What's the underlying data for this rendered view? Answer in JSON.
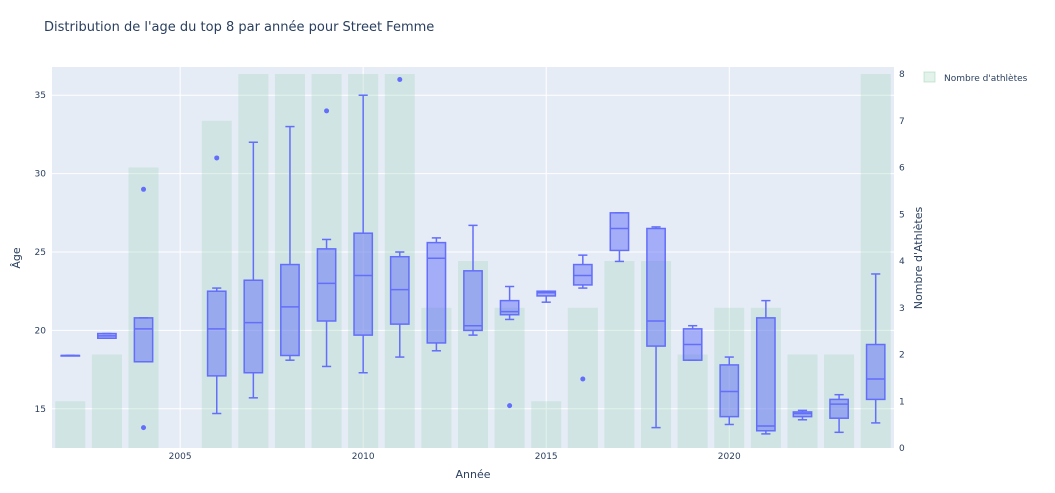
{
  "chart_data": {
    "type": "box",
    "title": "Distribution de l'age du top 8 par année pour Street Femme",
    "xlabel": "Année",
    "ylabel": "Âge",
    "y2label": "Nombre d'Athlètes",
    "xlim": [
      2001.5,
      2024.5
    ],
    "ylim": [
      12.5,
      36.8
    ],
    "y2lim": [
      0,
      8.15
    ],
    "xticks": [
      2005,
      2010,
      2015,
      2020
    ],
    "yticks": [
      15,
      20,
      25,
      30,
      35
    ],
    "y2ticks": [
      0,
      1,
      2,
      3,
      4,
      5,
      6,
      7,
      8
    ],
    "grid": true,
    "legend_position": "top-right",
    "legend": [
      "Nombre d'athlètes"
    ],
    "colors": {
      "plot_bg": "#E5ECF6",
      "box_line": "#636EFA",
      "box_fill": "rgba(99,110,250,0.5)",
      "bar_fill": "rgba(144,204,170,0.25)",
      "text": "#2a3f5f"
    },
    "bars": [
      {
        "x": 2002,
        "value": 1
      },
      {
        "x": 2003,
        "value": 2
      },
      {
        "x": 2004,
        "value": 6
      },
      {
        "x": 2006,
        "value": 7
      },
      {
        "x": 2007,
        "value": 8
      },
      {
        "x": 2008,
        "value": 8
      },
      {
        "x": 2009,
        "value": 8
      },
      {
        "x": 2010,
        "value": 8
      },
      {
        "x": 2011,
        "value": 8
      },
      {
        "x": 2012,
        "value": 3
      },
      {
        "x": 2013,
        "value": 4
      },
      {
        "x": 2014,
        "value": 3
      },
      {
        "x": 2015,
        "value": 1
      },
      {
        "x": 2016,
        "value": 3
      },
      {
        "x": 2017,
        "value": 4
      },
      {
        "x": 2018,
        "value": 4
      },
      {
        "x": 2019,
        "value": 2
      },
      {
        "x": 2020,
        "value": 3
      },
      {
        "x": 2021,
        "value": 3
      },
      {
        "x": 2022,
        "value": 2
      },
      {
        "x": 2023,
        "value": 2
      },
      {
        "x": 2024,
        "value": 8
      }
    ],
    "boxes": [
      {
        "x": 2002,
        "min": 18.4,
        "q1": 18.4,
        "median": 18.4,
        "q3": 18.4,
        "max": 18.4,
        "outliers": []
      },
      {
        "x": 2003,
        "min": 19.5,
        "q1": 19.5,
        "median": 19.65,
        "q3": 19.8,
        "max": 19.8,
        "outliers": []
      },
      {
        "x": 2004,
        "min": 18.0,
        "q1": 18.0,
        "median": 20.1,
        "q3": 20.8,
        "max": 20.8,
        "outliers": [
          29.0,
          13.8
        ]
      },
      {
        "x": 2006,
        "min": 14.7,
        "q1": 17.1,
        "median": 20.1,
        "q3": 22.5,
        "max": 22.7,
        "outliers": [
          31.0
        ]
      },
      {
        "x": 2007,
        "min": 15.7,
        "q1": 17.3,
        "median": 20.5,
        "q3": 23.2,
        "max": 32.0,
        "outliers": []
      },
      {
        "x": 2008,
        "min": 18.1,
        "q1": 18.4,
        "median": 21.5,
        "q3": 24.2,
        "max": 33.0,
        "outliers": []
      },
      {
        "x": 2009,
        "min": 17.7,
        "q1": 20.6,
        "median": 23.0,
        "q3": 25.2,
        "max": 25.8,
        "outliers": [
          34.0
        ]
      },
      {
        "x": 2010,
        "min": 17.3,
        "q1": 19.7,
        "median": 23.5,
        "q3": 26.2,
        "max": 35.0,
        "outliers": []
      },
      {
        "x": 2011,
        "min": 18.3,
        "q1": 20.4,
        "median": 22.6,
        "q3": 24.7,
        "max": 25.0,
        "outliers": [
          36.0
        ]
      },
      {
        "x": 2012,
        "min": 18.7,
        "q1": 19.2,
        "median": 24.6,
        "q3": 25.6,
        "max": 25.9,
        "outliers": []
      },
      {
        "x": 2013,
        "min": 19.7,
        "q1": 20.0,
        "median": 20.3,
        "q3": 23.8,
        "max": 26.7,
        "outliers": []
      },
      {
        "x": 2014,
        "min": 20.7,
        "q1": 21.0,
        "median": 21.2,
        "q3": 21.9,
        "max": 22.8,
        "outliers": [
          15.2
        ]
      },
      {
        "x": 2015,
        "min": 21.8,
        "q1": 22.2,
        "median": 22.4,
        "q3": 22.5,
        "max": 22.5,
        "outliers": []
      },
      {
        "x": 2016,
        "min": 22.7,
        "q1": 22.9,
        "median": 23.5,
        "q3": 24.2,
        "max": 24.8,
        "outliers": [
          16.9
        ]
      },
      {
        "x": 2017,
        "min": 24.4,
        "q1": 25.1,
        "median": 26.5,
        "q3": 27.5,
        "max": 27.5,
        "outliers": []
      },
      {
        "x": 2018,
        "min": 13.8,
        "q1": 19.0,
        "median": 20.6,
        "q3": 26.5,
        "max": 26.6,
        "outliers": []
      },
      {
        "x": 2019,
        "min": 18.1,
        "q1": 18.1,
        "median": 19.1,
        "q3": 20.1,
        "max": 20.3,
        "outliers": []
      },
      {
        "x": 2020,
        "min": 14.0,
        "q1": 14.5,
        "median": 16.1,
        "q3": 17.8,
        "max": 18.3,
        "outliers": []
      },
      {
        "x": 2021,
        "min": 13.4,
        "q1": 13.6,
        "median": 13.9,
        "q3": 20.8,
        "max": 21.9,
        "outliers": []
      },
      {
        "x": 2022,
        "min": 14.3,
        "q1": 14.5,
        "median": 14.7,
        "q3": 14.8,
        "max": 14.9,
        "outliers": []
      },
      {
        "x": 2023,
        "min": 13.5,
        "q1": 14.4,
        "median": 15.3,
        "q3": 15.6,
        "max": 15.9,
        "outliers": []
      },
      {
        "x": 2024,
        "min": 14.1,
        "q1": 15.6,
        "median": 16.9,
        "q3": 19.1,
        "max": 23.6,
        "outliers": []
      }
    ]
  }
}
